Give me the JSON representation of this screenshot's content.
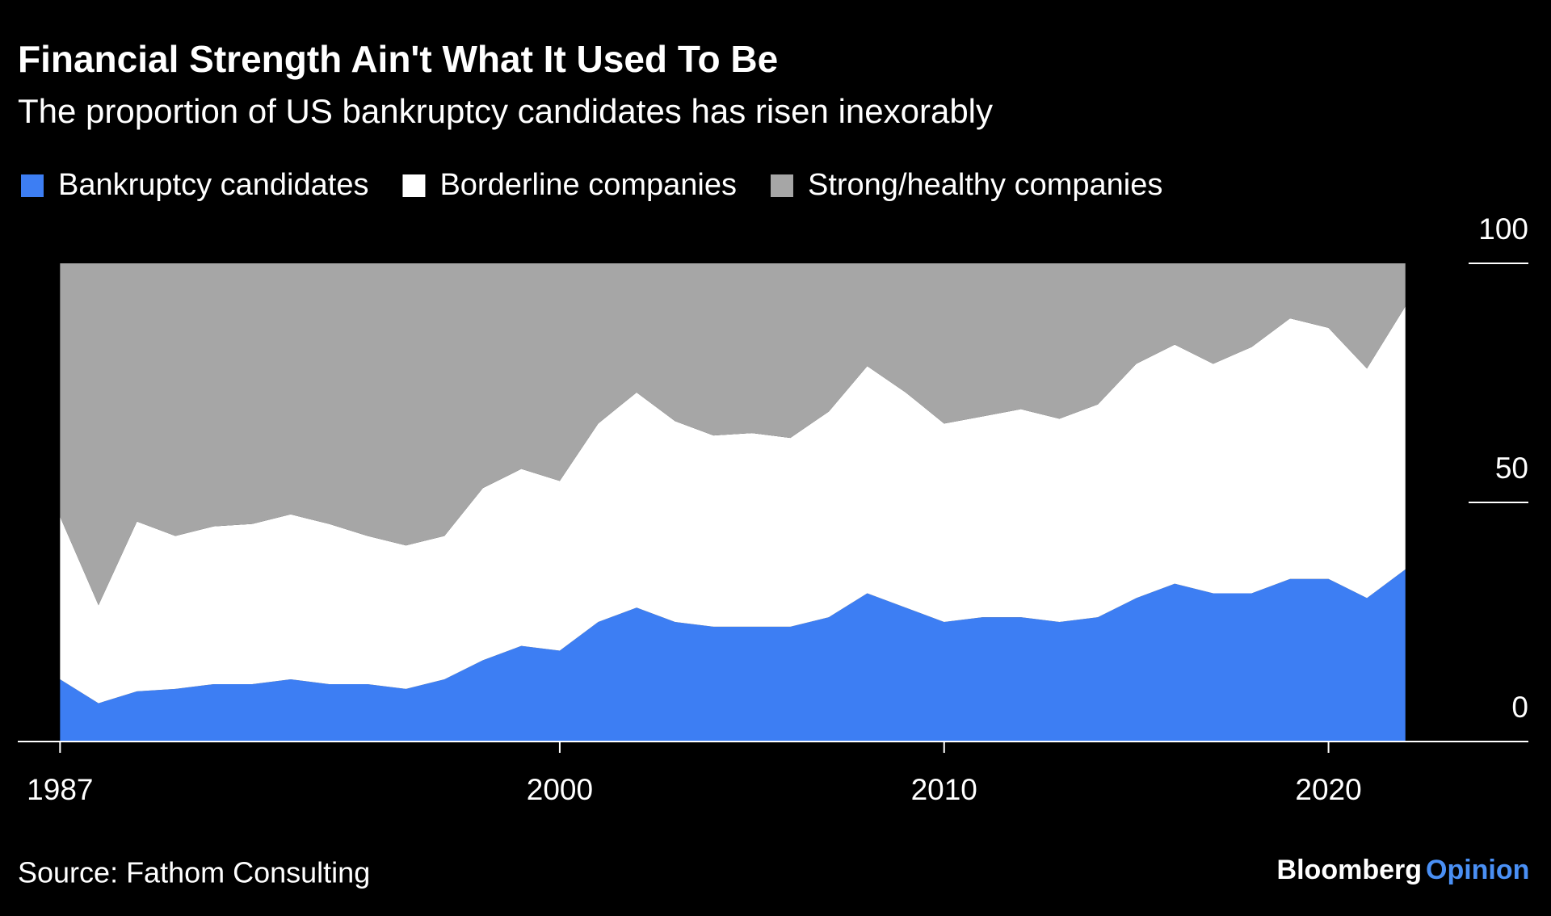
{
  "chart_data": {
    "type": "stacked_area",
    "title": "Financial Strength Ain't What It Used To Be",
    "subtitle": "The proportion of US bankruptcy candidates has risen inexorably",
    "x": [
      1987,
      1988,
      1989,
      1990,
      1991,
      1992,
      1993,
      1994,
      1995,
      1996,
      1997,
      1998,
      1999,
      2000,
      2001,
      2002,
      2003,
      2004,
      2005,
      2006,
      2007,
      2008,
      2009,
      2010,
      2011,
      2012,
      2013,
      2014,
      2015,
      2016,
      2017,
      2018,
      2019,
      2020,
      2021,
      2022
    ],
    "series": [
      {
        "name": "Bankruptcy candidates",
        "color": "#3d7ef3",
        "values": [
          13,
          8,
          10.5,
          11,
          12,
          12,
          13,
          12,
          12,
          11,
          13,
          17,
          20,
          19,
          25,
          28,
          25,
          24,
          24,
          24,
          26,
          31,
          28,
          25,
          26,
          26,
          25,
          26,
          30,
          33,
          31,
          31,
          34,
          34,
          30,
          36
        ]
      },
      {
        "name": "Borderline companies",
        "color": "#ffffff",
        "values": [
          34,
          20.5,
          35.5,
          32,
          33,
          33.5,
          34.5,
          33.5,
          31,
          30,
          30,
          36,
          37,
          35.5,
          41.5,
          45,
          42,
          40,
          40.5,
          39.5,
          43,
          47.5,
          45,
          41.5,
          42,
          43.5,
          42.5,
          44.5,
          49,
          50,
          48,
          51.5,
          54.5,
          52.5,
          48,
          55
        ]
      },
      {
        "name": "Strong/healthy companies",
        "color": "#a6a6a6",
        "values": [
          53,
          71.5,
          54,
          57,
          55,
          54.5,
          52.5,
          54.5,
          57,
          59,
          57,
          47,
          43,
          45.5,
          33.5,
          27,
          33,
          36,
          35.5,
          36.5,
          31,
          21.5,
          27,
          33.5,
          32,
          30.5,
          32.5,
          29.5,
          21,
          17,
          21,
          17.5,
          11.5,
          13.5,
          22,
          9
        ]
      }
    ],
    "xlim": [
      1985.9,
      2025.2
    ],
    "xticks": [
      1987,
      2000,
      2010,
      2020
    ],
    "ylim": [
      0,
      100
    ],
    "yticks": [
      0,
      50,
      100
    ],
    "source": "Source: Fathom Consulting",
    "brand": {
      "name": "Bloomberg",
      "suffix": "Opinion"
    }
  }
}
